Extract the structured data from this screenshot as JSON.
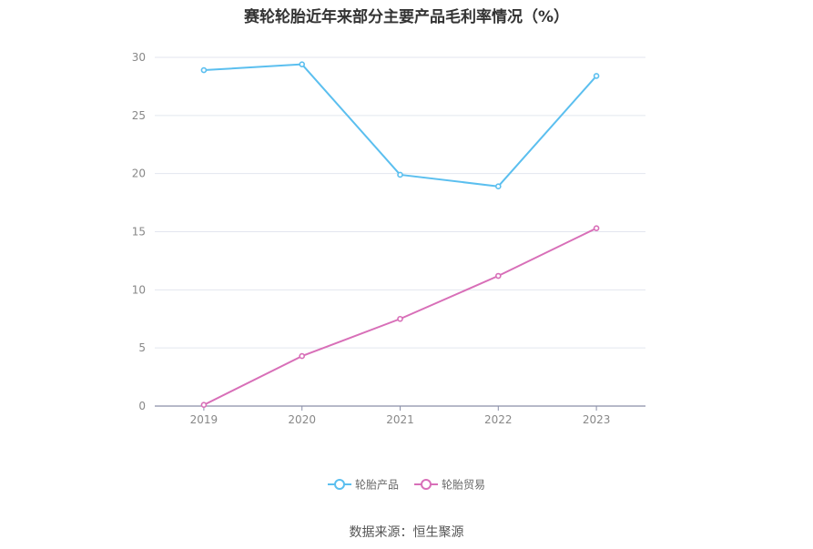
{
  "title": "赛轮轮胎近年来部分主要产品毛利率情况（%）",
  "source": "数据来源：恒生聚源",
  "chart_data": {
    "type": "line",
    "title": "赛轮轮胎近年来部分主要产品毛利率情况（%）",
    "categories": [
      "2019",
      "2020",
      "2021",
      "2022",
      "2023"
    ],
    "ylim": [
      0,
      30
    ],
    "yticks": [
      0,
      5,
      10,
      15,
      20,
      25,
      30
    ],
    "grid": true,
    "legend_position": "bottom",
    "series": [
      {
        "name": "轮胎产品",
        "color": "#5bbfef",
        "values": [
          28.9,
          29.4,
          19.9,
          18.9,
          28.4
        ]
      },
      {
        "name": "轮胎贸易",
        "color": "#d86fb8",
        "values": [
          0.1,
          4.3,
          7.5,
          11.2,
          15.3
        ]
      }
    ]
  }
}
